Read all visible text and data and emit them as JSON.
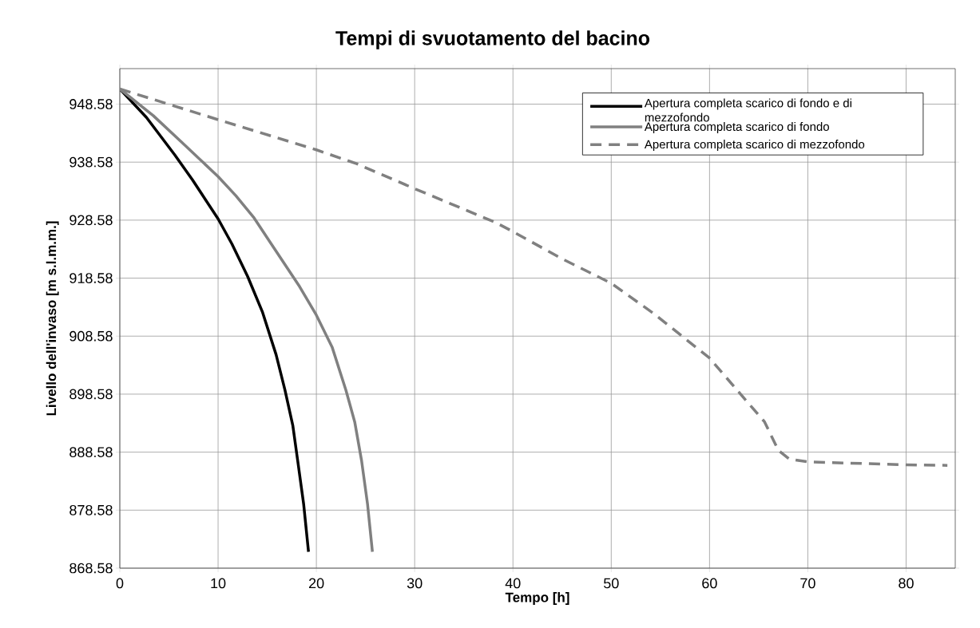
{
  "chart_data": {
    "type": "line",
    "title": "Tempi di svuotamento del bacino",
    "xlabel": "Tempo [h]",
    "ylabel": "Livello dell'invaso [m s.l.m.m.]",
    "xlim": [
      0,
      85
    ],
    "xticks": [
      0,
      10,
      20,
      30,
      40,
      50,
      60,
      70,
      80
    ],
    "ylim": [
      868.58,
      954.7
    ],
    "yticks": [
      868.58,
      878.58,
      888.58,
      898.58,
      908.58,
      918.58,
      928.58,
      938.58,
      948.58
    ],
    "grid": true,
    "legend": "top right",
    "series": [
      {
        "name": "Apertura completa scarico di fondo e di mezzofondo",
        "color": "#000000",
        "line_style": "solid",
        "x": [
          0,
          2.7,
          5.6,
          7.4,
          10,
          11.4,
          13.0,
          14.5,
          15.9,
          16.8,
          17.6,
          18.1,
          18.7,
          19.2
        ],
        "values": [
          951.2,
          946.3,
          939.8,
          935.5,
          928.8,
          924.5,
          918.9,
          912.8,
          905.4,
          899.3,
          893.2,
          887.1,
          879.7,
          871.4
        ]
      },
      {
        "name": "Apertura completa scarico di fondo",
        "color": "#808080",
        "line_style": "solid",
        "x": [
          0,
          3.4,
          6.3,
          10,
          11.8,
          13.6,
          15.4,
          18.3,
          20,
          21.6,
          23.0,
          23.9,
          24.6,
          25.2,
          25.7
        ],
        "values": [
          951.2,
          946.6,
          942.0,
          936.1,
          932.8,
          929.1,
          924.5,
          917.1,
          912.2,
          906.7,
          899.3,
          893.8,
          887.1,
          879.7,
          871.4
        ]
      },
      {
        "name": "Apertura completa scarico di mezzofondo",
        "color": "#808080",
        "line_style": "dashed",
        "x": [
          0,
          10,
          20,
          24.1,
          30,
          38.2,
          40,
          44.9,
          50,
          54.3,
          60,
          63.4,
          65.6,
          67.0,
          68.1,
          70,
          80,
          84.2
        ],
        "values": [
          951.2,
          945.9,
          940.7,
          938.3,
          934.0,
          928.2,
          926.6,
          922.0,
          917.7,
          912.5,
          904.8,
          898.1,
          893.8,
          888.9,
          887.4,
          886.9,
          886.4,
          886.3
        ]
      }
    ]
  }
}
